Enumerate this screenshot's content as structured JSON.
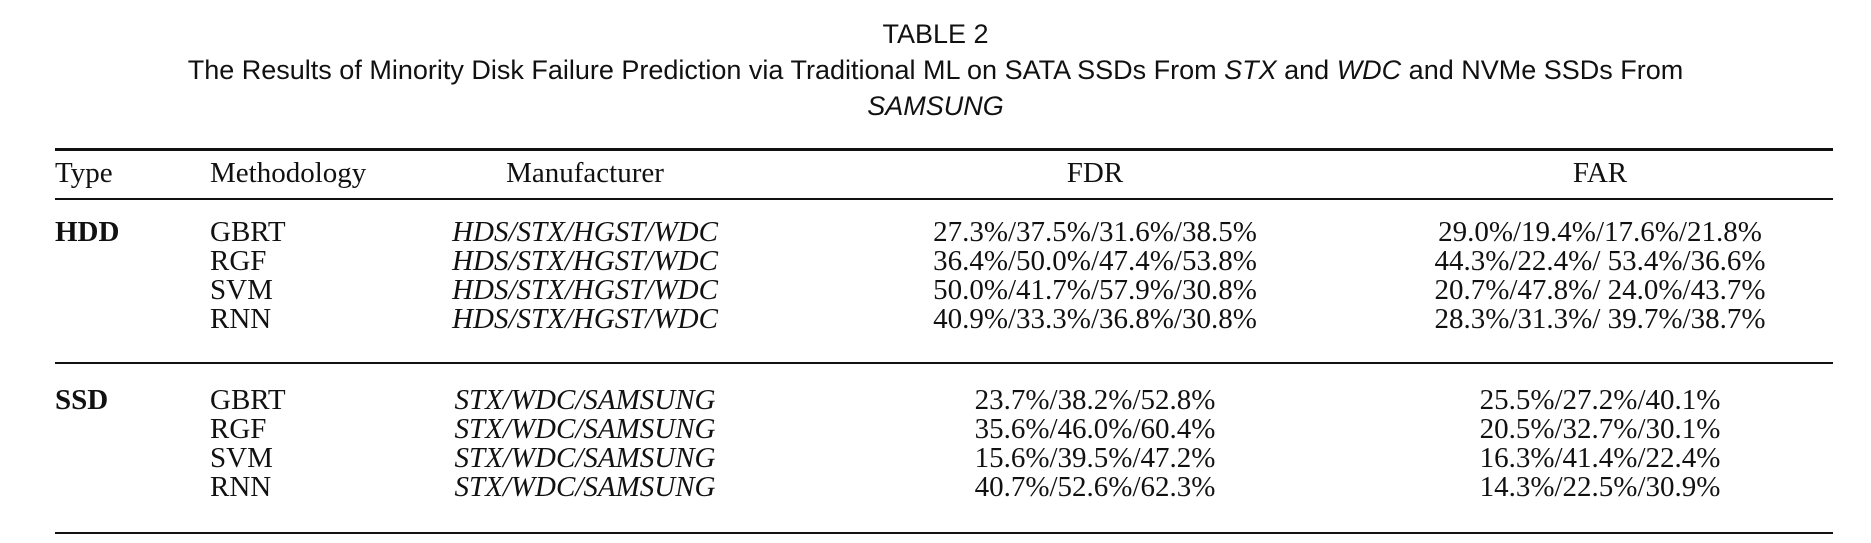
{
  "caption": {
    "label": "TABLE 2",
    "title_parts": [
      "The Results of Minority Disk Failure Prediction via Traditional ML on SATA SSDs From ",
      "STX",
      " and ",
      "WDC",
      " and NVMe SSDs From"
    ],
    "title_last": "SAMSUNG"
  },
  "table": {
    "headers": [
      "Type",
      "Methodology",
      "Manufacturer",
      "FDR",
      "FAR"
    ],
    "groups": [
      {
        "type": "HDD",
        "rows": [
          {
            "method": "GBRT",
            "manufacturer": "HDS/STX/HGST/WDC",
            "fdr": "27.3%/37.5%/31.6%/38.5%",
            "far": "29.0%/19.4%/17.6%/21.8%"
          },
          {
            "method": "RGF",
            "manufacturer": "HDS/STX/HGST/WDC",
            "fdr": "36.4%/50.0%/47.4%/53.8%",
            "far": "44.3%/22.4%/ 53.4%/36.6%"
          },
          {
            "method": "SVM",
            "manufacturer": "HDS/STX/HGST/WDC",
            "fdr": "50.0%/41.7%/57.9%/30.8%",
            "far": "20.7%/47.8%/ 24.0%/43.7%"
          },
          {
            "method": "RNN",
            "manufacturer": "HDS/STX/HGST/WDC",
            "fdr": "40.9%/33.3%/36.8%/30.8%",
            "far": "28.3%/31.3%/ 39.7%/38.7%"
          }
        ]
      },
      {
        "type": "SSD",
        "rows": [
          {
            "method": "GBRT",
            "manufacturer": "STX/WDC/SAMSUNG",
            "fdr": "23.7%/38.2%/52.8%",
            "far": "25.5%/27.2%/40.1%"
          },
          {
            "method": "RGF",
            "manufacturer": "STX/WDC/SAMSUNG",
            "fdr": "35.6%/46.0%/60.4%",
            "far": "20.5%/32.7%/30.1%"
          },
          {
            "method": "SVM",
            "manufacturer": "STX/WDC/SAMSUNG",
            "fdr": "15.6%/39.5%/47.2%",
            "far": "16.3%/41.4%/22.4%"
          },
          {
            "method": "RNN",
            "manufacturer": "STX/WDC/SAMSUNG",
            "fdr": "40.7%/52.6%/62.3%",
            "far": "14.3%/22.5%/30.9%"
          }
        ]
      }
    ]
  }
}
